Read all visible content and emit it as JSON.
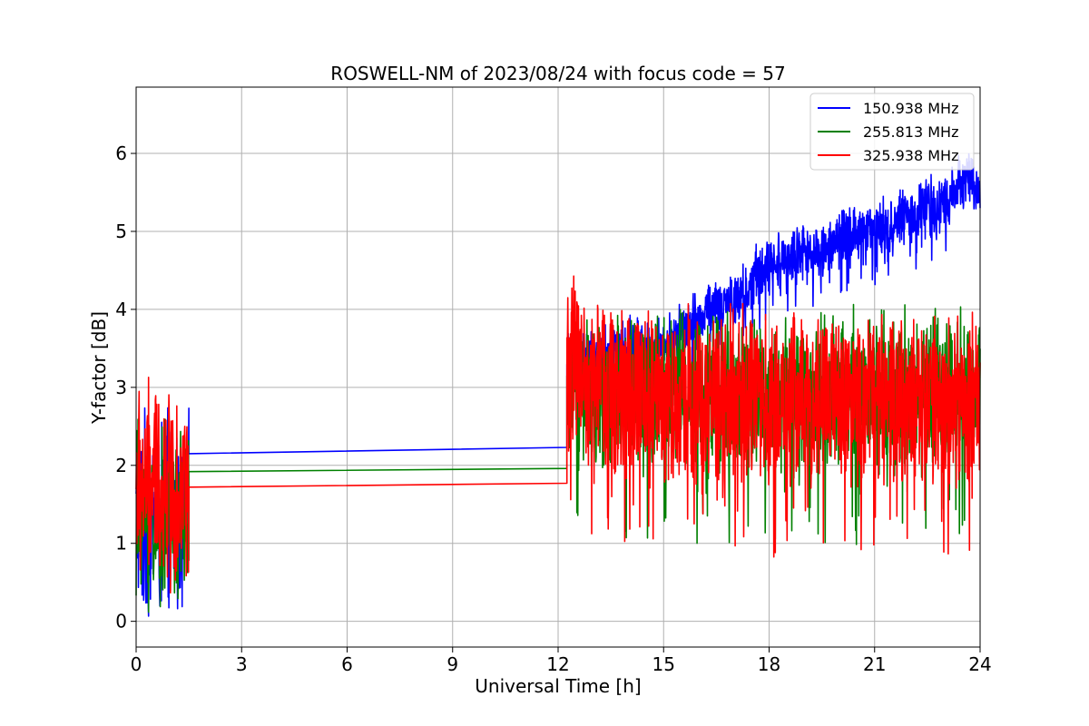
{
  "chart_data": {
    "type": "line",
    "title": "ROSWELL-NM of 2023/08/24 with focus code = 57",
    "xlabel": "Universal Time [h]",
    "ylabel": "Y-factor [dB]",
    "xlim": [
      0,
      24
    ],
    "ylim": [
      -0.33,
      6.85
    ],
    "xticks": [
      0,
      3,
      6,
      9,
      12,
      15,
      18,
      21,
      24
    ],
    "yticks": [
      0,
      1,
      2,
      3,
      4,
      5,
      6
    ],
    "grid": true,
    "legend_position": "top-right",
    "series": [
      {
        "name": "150.938 MHz",
        "color": "#0000ff",
        "gap": [
          [
            1.5,
            2.15
          ],
          [
            12.25,
            2.23
          ]
        ],
        "seg1": {
          "x0": 0.0,
          "x1": 1.5,
          "mean": 1.3,
          "amp": 1.5
        },
        "seg2": {
          "x": [
            12.25,
            13,
            14,
            15,
            15.6,
            16,
            17,
            18,
            19,
            20,
            21,
            22,
            23,
            23.7,
            24
          ],
          "mean": [
            3.3,
            3.4,
            3.5,
            3.5,
            3.8,
            3.9,
            4.1,
            4.6,
            4.7,
            4.9,
            5.0,
            5.2,
            5.4,
            5.7,
            5.4
          ],
          "amp": 0.45
        }
      },
      {
        "name": "255.813 MHz",
        "color": "#008000",
        "gap": [
          [
            1.5,
            1.92
          ],
          [
            12.25,
            1.96
          ]
        ],
        "seg1": {
          "x0": 0.0,
          "x1": 1.5,
          "mean": 1.35,
          "amp": 1.4
        },
        "seg2": {
          "x": [
            12.25,
            24
          ],
          "mean": [
            2.9,
            2.9
          ],
          "amp": 1.2
        }
      },
      {
        "name": "325.938 MHz",
        "color": "#ff0000",
        "gap": [
          [
            1.5,
            1.72
          ],
          [
            12.25,
            1.77
          ]
        ],
        "seg1": {
          "x0": 0.0,
          "x1": 1.5,
          "mean": 1.75,
          "amp": 1.5
        },
        "seg2": {
          "x": [
            12.25,
            13,
            14,
            24
          ],
          "mean": [
            3.3,
            3.1,
            2.9,
            2.8
          ],
          "amp": 1.3
        }
      }
    ]
  }
}
